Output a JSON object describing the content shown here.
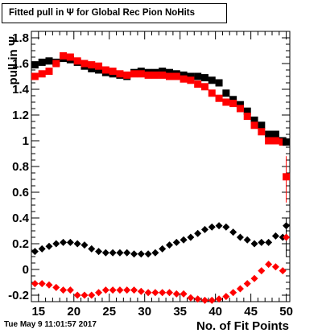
{
  "title": "Fitted pull in  Ψ  for Global Rec Pion NoHits",
  "timestamp": "Tue May  9 11:01:57 2017",
  "colors": {
    "black_series": "#000000",
    "red_series": "#ff0000",
    "axis": "#000000"
  },
  "chart_data": {
    "type": "scatter",
    "title": "Fitted pull in  Ψ  for Global Rec Pion NoHits",
    "xlabel": "No. of Fit Points",
    "ylabel": "pull in  Ψ",
    "xlim": [
      14,
      50.5
    ],
    "ylim": [
      -0.25,
      1.85
    ],
    "xticks": [
      15,
      20,
      25,
      30,
      35,
      40,
      45,
      50
    ],
    "yticks": [
      -0.2,
      0,
      0.2,
      0.4,
      0.6,
      0.8,
      1,
      1.2,
      1.4,
      1.6,
      1.8
    ],
    "ytick_labels": [
      "-0.2",
      "0",
      "0.2",
      "0.4",
      "0.6",
      "0.8",
      "1",
      "1.2",
      "1.4",
      "1.6",
      "1.8"
    ],
    "grid": false,
    "legend": "none",
    "series": [
      {
        "marker": "square",
        "color": "#000000",
        "x": [
          14.5,
          15.5,
          16.5,
          17.5,
          18.5,
          19.5,
          20.5,
          21.5,
          22.5,
          23.5,
          24.5,
          25.5,
          26.5,
          27.5,
          28.5,
          29.5,
          30.5,
          31.5,
          32.5,
          33.5,
          34.5,
          35.5,
          36.5,
          37.5,
          38.5,
          39.5,
          40.5,
          41.5,
          42.5,
          43.5,
          44.5,
          45.5,
          46.5,
          47.5,
          48.5,
          49.5
        ],
        "y": [
          1.59,
          1.61,
          1.62,
          1.61,
          1.64,
          1.63,
          1.61,
          1.58,
          1.56,
          1.55,
          1.53,
          1.52,
          1.51,
          1.5,
          1.53,
          1.54,
          1.53,
          1.53,
          1.54,
          1.53,
          1.52,
          1.51,
          1.5,
          1.5,
          1.49,
          1.47,
          1.45,
          1.37,
          1.32,
          1.28,
          1.23,
          1.16,
          1.12,
          1.05,
          1.05,
          1.0
        ]
      },
      {
        "marker": "square",
        "color": "#ff0000",
        "x": [
          14.5,
          15.5,
          16.5,
          17.5,
          18.5,
          19.5,
          20.5,
          21.5,
          22.5,
          23.5,
          24.5,
          25.5,
          26.5,
          27.5,
          28.5,
          29.5,
          30.5,
          31.5,
          32.5,
          33.5,
          34.5,
          35.5,
          36.5,
          37.5,
          38.5,
          39.5,
          40.5,
          41.5,
          42.5,
          43.5,
          44.5,
          45.5,
          46.5,
          47.5,
          48.5,
          49.5
        ],
        "y": [
          1.5,
          1.52,
          1.54,
          1.6,
          1.66,
          1.65,
          1.62,
          1.6,
          1.59,
          1.58,
          1.55,
          1.54,
          1.52,
          1.51,
          1.52,
          1.52,
          1.51,
          1.51,
          1.51,
          1.5,
          1.5,
          1.48,
          1.47,
          1.44,
          1.42,
          1.37,
          1.33,
          1.3,
          1.29,
          1.25,
          1.19,
          1.12,
          1.07,
          1.0,
          1.0,
          0.99
        ]
      },
      {
        "marker": "diamond",
        "color": "#000000",
        "x": [
          14.5,
          15.5,
          16.5,
          17.5,
          18.5,
          19.5,
          20.5,
          21.5,
          22.5,
          23.5,
          24.5,
          25.5,
          26.5,
          27.5,
          28.5,
          29.5,
          30.5,
          31.5,
          32.5,
          33.5,
          34.5,
          35.5,
          36.5,
          37.5,
          38.5,
          39.5,
          40.5,
          41.5,
          42.5,
          43.5,
          44.5,
          45.5,
          46.5,
          47.5,
          48.5,
          49.5
        ],
        "y": [
          0.14,
          0.16,
          0.18,
          0.2,
          0.21,
          0.21,
          0.2,
          0.19,
          0.16,
          0.14,
          0.13,
          0.13,
          0.13,
          0.13,
          0.12,
          0.12,
          0.12,
          0.13,
          0.16,
          0.19,
          0.21,
          0.23,
          0.25,
          0.28,
          0.31,
          0.33,
          0.34,
          0.33,
          0.29,
          0.25,
          0.23,
          0.2,
          0.21,
          0.21,
          0.26,
          0.25
        ]
      },
      {
        "marker": "diamond",
        "color": "#ff0000",
        "x": [
          14.5,
          15.5,
          16.5,
          17.5,
          18.5,
          19.5,
          20.5,
          21.5,
          22.5,
          23.5,
          24.5,
          25.5,
          26.5,
          27.5,
          28.5,
          29.5,
          30.5,
          31.5,
          32.5,
          33.5,
          34.5,
          35.5,
          36.5,
          37.5,
          38.5,
          39.5,
          40.5,
          41.5,
          42.5,
          43.5,
          44.5,
          45.5,
          46.5,
          47.5,
          48.5,
          49.5
        ],
        "y": [
          -0.11,
          -0.11,
          -0.12,
          -0.14,
          -0.16,
          -0.16,
          -0.2,
          -0.2,
          -0.2,
          -0.18,
          -0.16,
          -0.16,
          -0.16,
          -0.16,
          -0.16,
          -0.17,
          -0.18,
          -0.18,
          -0.18,
          -0.18,
          -0.19,
          -0.19,
          -0.22,
          -0.23,
          -0.24,
          -0.24,
          -0.23,
          -0.21,
          -0.18,
          -0.15,
          -0.11,
          -0.07,
          -0.01,
          0.04,
          0.02,
          -0.01
        ]
      }
    ],
    "last_bin": {
      "x": 50,
      "black_square": 0.99,
      "red_square": 0.72,
      "black_diamond": 0.34,
      "red_diamond": 0.25
    }
  }
}
